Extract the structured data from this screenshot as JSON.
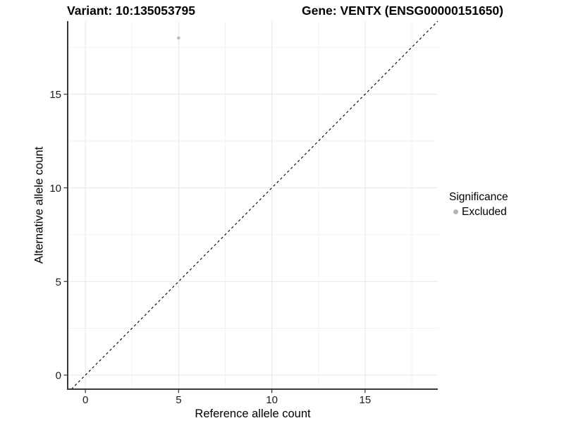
{
  "chart_data": {
    "type": "scatter",
    "title_left": "Variant: 10:135053795",
    "title_right": "Gene: VENTX (ENSG00000151650)",
    "xlabel": "Reference allele count",
    "ylabel": "Alternative allele count",
    "xlim": [
      -0.95,
      18.9
    ],
    "ylim": [
      -0.75,
      18.9
    ],
    "x_ticks": [
      0,
      5,
      10,
      15
    ],
    "y_ticks": [
      0,
      5,
      10,
      15
    ],
    "x_minor_ticks": [
      2.5,
      7.5,
      12.5,
      17.5
    ],
    "y_minor_ticks": [
      2.5,
      7.5,
      12.5,
      17.5
    ],
    "grid": true,
    "points": [
      {
        "x": 5,
        "y": 18,
        "series": "Excluded"
      }
    ],
    "reference_line": {
      "type": "identity",
      "equation": "y = x",
      "style": "dashed",
      "color": "#000000"
    },
    "legend": {
      "title": "Significance",
      "position": "right",
      "entries": [
        {
          "label": "Excluded",
          "color": "#b3b3b3",
          "marker": "circle"
        }
      ]
    }
  },
  "colors": {
    "background": "#ffffff",
    "point": "#bdbdbd",
    "grid_major": "#e7e7e7",
    "grid_minor": "#f2f2f2",
    "axis_line": "#3a3a3a",
    "tick": "#333333",
    "tick_label": "#1a1a1a",
    "dashed_line": "#000000"
  }
}
